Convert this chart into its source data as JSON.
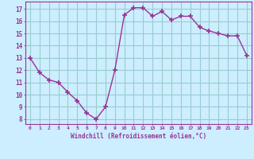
{
  "x": [
    0,
    1,
    2,
    3,
    4,
    5,
    6,
    7,
    8,
    9,
    10,
    11,
    12,
    13,
    14,
    15,
    16,
    17,
    18,
    19,
    20,
    21,
    22,
    23
  ],
  "y": [
    13.0,
    11.8,
    11.2,
    11.0,
    10.2,
    9.5,
    8.5,
    8.0,
    9.0,
    12.0,
    16.5,
    17.1,
    17.1,
    16.4,
    16.8,
    16.1,
    16.4,
    16.4,
    15.5,
    15.2,
    15.0,
    14.8,
    14.8,
    13.2
  ],
  "line_color": "#993399",
  "marker_style": "+",
  "marker_color": "#993399",
  "background_color": "#cceeff",
  "grid_color": "#99cccc",
  "xlabel": "Windchill (Refroidissement éolien,°C)",
  "xlabel_color": "#993399",
  "ylabel_ticks": [
    8,
    9,
    10,
    11,
    12,
    13,
    14,
    15,
    16,
    17
  ],
  "xlim": [
    -0.5,
    23.5
  ],
  "ylim": [
    7.6,
    17.6
  ],
  "xtick_labels": [
    "0",
    "1",
    "2",
    "3",
    "4",
    "5",
    "6",
    "7",
    "8",
    "9",
    "10",
    "11",
    "12",
    "13",
    "14",
    "15",
    "16",
    "17",
    "18",
    "19",
    "20",
    "21",
    "22",
    "23"
  ],
  "tick_color": "#993399",
  "spine_color": "#993399"
}
